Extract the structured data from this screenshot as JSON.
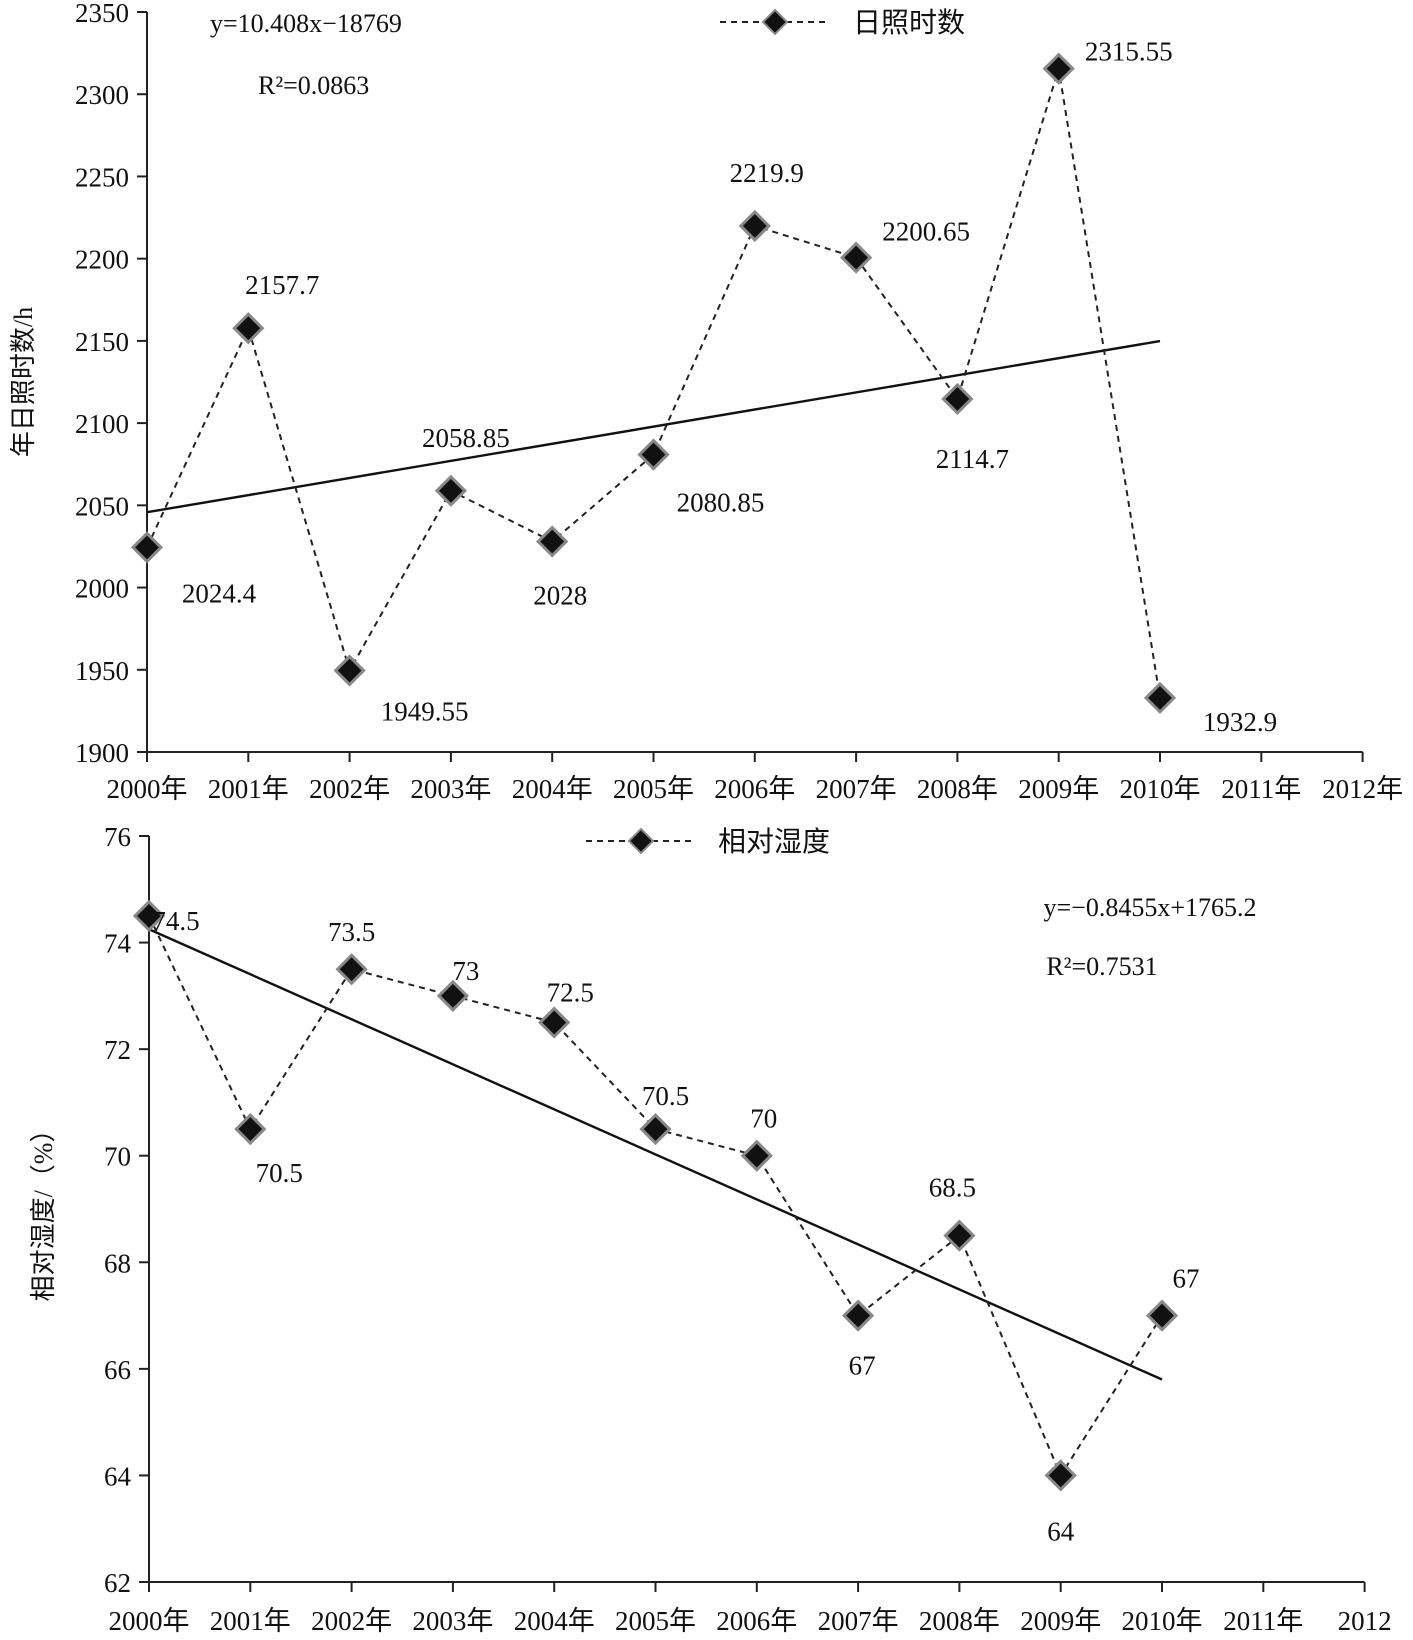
{
  "chart_data": [
    {
      "type": "line",
      "categories": [
        "2000年",
        "2001年",
        "2002年",
        "2003年",
        "2004年",
        "2005年",
        "2006年",
        "2007年",
        "2008年",
        "2009年",
        "2010年",
        "2011年",
        "2012年"
      ],
      "series": [
        {
          "name": "日照时数",
          "x": [
            "2000年",
            "2001年",
            "2002年",
            "2003年",
            "2004年",
            "2005年",
            "2006年",
            "2007年",
            "2008年",
            "2009年",
            "2010年"
          ],
          "values": [
            2024.4,
            2157.7,
            1949.55,
            2058.85,
            2028,
            2080.85,
            2219.9,
            2200.65,
            2114.7,
            2315.55,
            1932.9
          ],
          "labels": [
            "2024.4",
            "2157.7",
            "1949.55",
            "2058.85",
            "2028",
            "2080.85",
            "2219.9",
            "2200.65",
            "2114.7",
            "2315.55",
            "1932.9"
          ],
          "style": "dashed",
          "marker": "diamond"
        }
      ],
      "trendline": {
        "start": 2045.8,
        "end": 2149.9
      },
      "equation": "y=10.408x−18769",
      "r_squared": "R²=0.0863",
      "ylabel": "年日照时数/h",
      "ylim": [
        1900,
        2350
      ],
      "yticks": [
        1900,
        1950,
        2000,
        2050,
        2100,
        2150,
        2200,
        2250,
        2300,
        2350
      ],
      "legend": "top-center"
    },
    {
      "type": "line",
      "categories": [
        "2000年",
        "2001年",
        "2002年",
        "2003年",
        "2004年",
        "2005年",
        "2006年",
        "2007年",
        "2008年",
        "2009年",
        "2010年",
        "2011年",
        "2012"
      ],
      "series": [
        {
          "name": "相对湿度",
          "x": [
            "2000年",
            "2001年",
            "2002年",
            "2003年",
            "2004年",
            "2005年",
            "2006年",
            "2007年",
            "2008年",
            "2009年",
            "2010年"
          ],
          "values": [
            74.5,
            70.5,
            73.5,
            73,
            72.5,
            70.5,
            70,
            67,
            68.5,
            64,
            67
          ],
          "labels": [
            "74.5",
            "70.5",
            "73.5",
            "73",
            "72.5",
            "70.5",
            "70",
            "67",
            "68.5",
            "64",
            "67"
          ],
          "style": "dashed",
          "marker": "diamond"
        }
      ],
      "trendline": {
        "start": 74.25,
        "end": 65.8
      },
      "equation": "y=−0.8455x+1765.2",
      "r_squared": "R²=0.7531",
      "ylabel": "相对湿度/（%）",
      "ylim": [
        62,
        76
      ],
      "yticks": [
        62,
        64,
        66,
        68,
        70,
        72,
        74,
        76
      ],
      "legend": "top-center"
    }
  ]
}
